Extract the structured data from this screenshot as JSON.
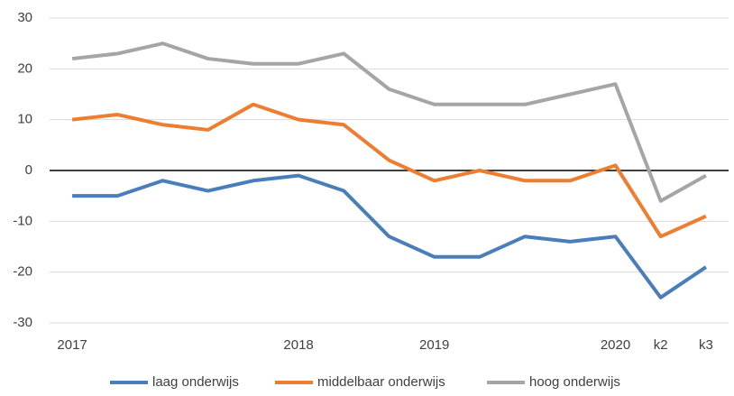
{
  "chart_data": {
    "type": "line",
    "categories": [
      "2017",
      null,
      null,
      null,
      null,
      "2018",
      null,
      null,
      "2019",
      null,
      null,
      null,
      "2020",
      "k2",
      "k3"
    ],
    "series": [
      {
        "name": "laag onderwijs",
        "color": "#4a7ebb",
        "values": [
          -5,
          -5,
          -2,
          -4,
          -2,
          -1,
          -4,
          -13,
          -17,
          -17,
          -13,
          -14,
          -13,
          -25,
          -19
        ]
      },
      {
        "name": "middelbaar onderwijs",
        "color": "#ed7d31",
        "values": [
          10,
          11,
          9,
          8,
          13,
          10,
          9,
          2,
          -2,
          0,
          -2,
          -2,
          1,
          -13,
          -9
        ]
      },
      {
        "name": "hoog onderwijs",
        "color": "#a5a5a5",
        "values": [
          22,
          23,
          25,
          22,
          21,
          21,
          23,
          16,
          13,
          13,
          13,
          15,
          17,
          -6,
          -1
        ]
      }
    ],
    "ylim": [
      -30,
      30
    ],
    "yticks": [
      30,
      20,
      10,
      0,
      -10,
      -20,
      -30
    ],
    "grid": true,
    "legend": "bottom"
  }
}
